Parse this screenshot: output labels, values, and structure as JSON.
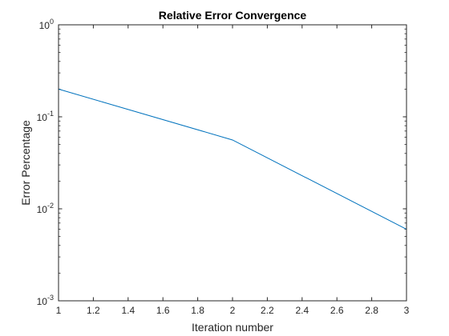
{
  "chart_data": {
    "type": "line",
    "title": "Relative Error Convergence",
    "xlabel": "Iteration number",
    "ylabel": "Error Percentage",
    "x": [
      1,
      2,
      3
    ],
    "series": [
      {
        "values": [
          0.2,
          0.056,
          0.006
        ]
      }
    ],
    "xlim": [
      1,
      3
    ],
    "ylim": [
      0.001,
      1
    ],
    "yscale": "log",
    "xticks": [
      1,
      1.2,
      1.4,
      1.6,
      1.8,
      2,
      2.2,
      2.4,
      2.6,
      2.8,
      3
    ],
    "xtick_labels": [
      "1",
      "1.2",
      "1.4",
      "1.6",
      "1.8",
      "2",
      "2.2",
      "2.4",
      "2.6",
      "2.8",
      "3"
    ],
    "yticks": [
      0.001,
      0.01,
      0.1,
      1
    ],
    "ytick_labels": [
      {
        "base": "10",
        "exp": "-3"
      },
      {
        "base": "10",
        "exp": "-2"
      },
      {
        "base": "10",
        "exp": "-1"
      },
      {
        "base": "10",
        "exp": "0"
      }
    ],
    "grid": false,
    "line_color": "#0072bd",
    "axis_color": "#262626"
  }
}
